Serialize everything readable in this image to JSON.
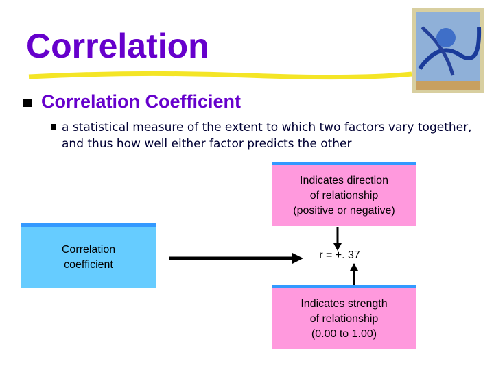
{
  "title": "Correlation",
  "heading": "Correlation Coefficient",
  "definition": "a statistical measure of the extent to which two factors vary together, and thus how well either factor predicts the other",
  "diagram": {
    "direction_box": {
      "lines": [
        "Indicates direction",
        "of relationship",
        "(positive or negative)"
      ]
    },
    "coefficient_box": {
      "lines": [
        "Correlation",
        "coefficient"
      ]
    },
    "result": "r = +. 37",
    "strength_box": {
      "lines": [
        "Indicates strength",
        "of relationship",
        "(0.00 to 1.00)"
      ]
    }
  }
}
